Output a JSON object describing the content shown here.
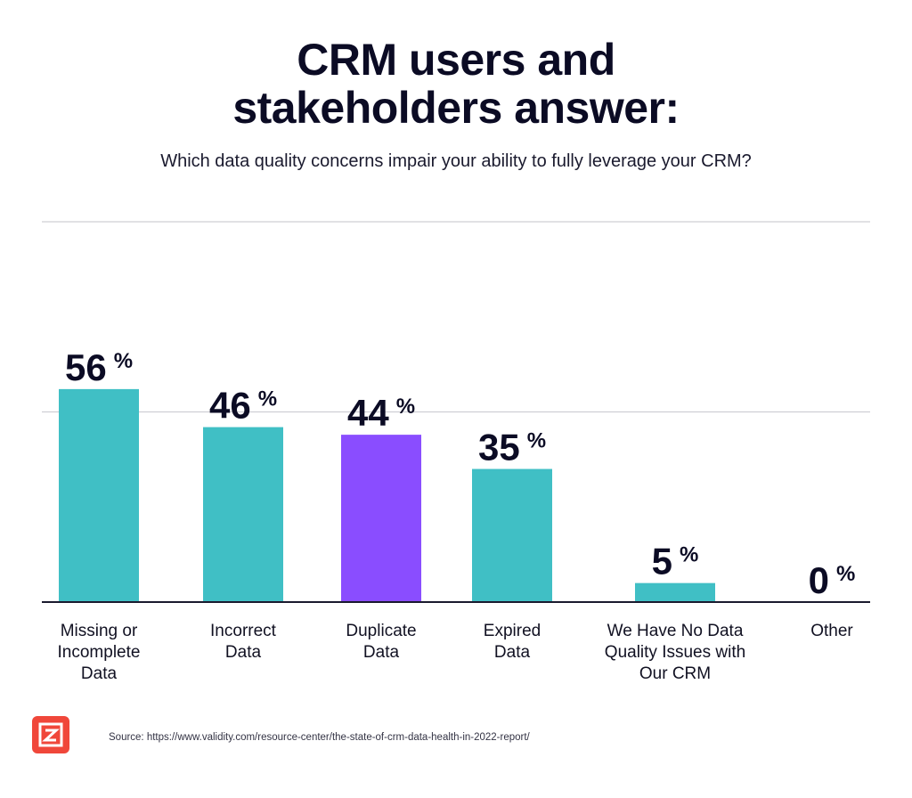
{
  "header": {
    "title_line1": "CRM users and",
    "title_line2": "stakeholders answer:",
    "subtitle": "Which data quality concerns impair your ability to fully leverage your CRM?"
  },
  "chart_data": {
    "type": "bar",
    "title": "CRM users and stakeholders answer:",
    "subtitle": "Which data quality concerns impair your ability to fully leverage your CRM?",
    "categories": [
      "Missing or Incomplete Data",
      "Incorrect Data",
      "Duplicate Data",
      "Expired Data",
      "We Have No Data Quality Issues with Our CRM",
      "Other"
    ],
    "label_lines": [
      [
        "Missing or",
        "Incomplete",
        "Data"
      ],
      [
        "Incorrect",
        "Data"
      ],
      [
        "Duplicate",
        "Data"
      ],
      [
        "Expired",
        "Data"
      ],
      [
        "We Have No Data",
        "Quality Issues with",
        "Our CRM"
      ],
      [
        "Other"
      ]
    ],
    "values": [
      56,
      46,
      44,
      35,
      5,
      0
    ],
    "unit": "%",
    "colors": [
      "#40bfc5",
      "#40bfc5",
      "#8a4dff",
      "#40bfc5",
      "#40bfc5",
      "#40bfc5"
    ],
    "ylim": [
      0,
      100
    ],
    "gridlines": [
      50,
      100
    ],
    "xlabel": "",
    "ylabel": ""
  },
  "footer": {
    "source": "Source:  https://www.validity.com/resource-center/the-state-of-crm-data-health-in-2022-report/",
    "logo_color": "#f0473a"
  }
}
